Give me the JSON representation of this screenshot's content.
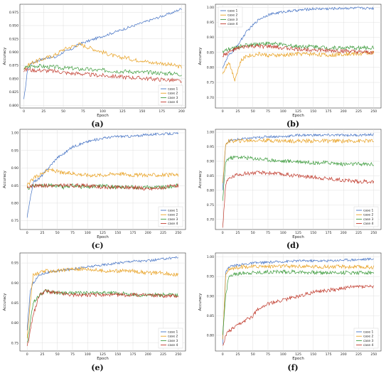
{
  "colors": {
    "case1": "#4472c4",
    "case2": "#e8a020",
    "case3": "#3a9a3a",
    "case4": "#c0392b"
  },
  "chart_data": [
    {
      "id": "a",
      "type": "line",
      "caption": "(a)",
      "xlabel": "Epoch",
      "ylabel": "Accuracy",
      "xlim": [
        -5,
        205
      ],
      "ylim": [
        0.795,
        0.99
      ],
      "xticks": [
        "0",
        "25",
        "50",
        "75",
        "100",
        "125",
        "150",
        "175",
        "200"
      ],
      "yticks": [
        "0.800",
        "0.825",
        "0.850",
        "0.875",
        "0.900",
        "0.925",
        "0.950",
        "0.975"
      ],
      "legend_position": "bottom-right",
      "x": [
        0,
        5,
        10,
        20,
        30,
        40,
        50,
        60,
        70,
        80,
        90,
        100,
        110,
        120,
        130,
        140,
        150,
        160,
        170,
        180,
        190,
        200
      ],
      "series": [
        {
          "name": "case 1",
          "values": [
            0.81,
            0.87,
            0.88,
            0.885,
            0.89,
            0.89,
            0.9,
            0.905,
            0.915,
            0.92,
            0.925,
            0.93,
            0.935,
            0.94,
            0.945,
            0.95,
            0.955,
            0.96,
            0.965,
            0.97,
            0.975,
            0.982
          ]
        },
        {
          "name": "case 2",
          "values": [
            0.87,
            0.875,
            0.88,
            0.885,
            0.89,
            0.895,
            0.905,
            0.91,
            0.915,
            0.91,
            0.905,
            0.9,
            0.895,
            0.89,
            0.89,
            0.885,
            0.885,
            0.88,
            0.88,
            0.878,
            0.875,
            0.872
          ]
        },
        {
          "name": "case 3",
          "values": [
            0.87,
            0.872,
            0.874,
            0.874,
            0.872,
            0.872,
            0.87,
            0.87,
            0.868,
            0.868,
            0.866,
            0.866,
            0.865,
            0.864,
            0.864,
            0.863,
            0.862,
            0.862,
            0.861,
            0.86,
            0.86,
            0.858
          ]
        },
        {
          "name": "case 4",
          "values": [
            0.865,
            0.868,
            0.866,
            0.866,
            0.865,
            0.864,
            0.862,
            0.86,
            0.86,
            0.858,
            0.857,
            0.856,
            0.855,
            0.854,
            0.853,
            0.852,
            0.851,
            0.85,
            0.849,
            0.848,
            0.847,
            0.845
          ]
        }
      ]
    },
    {
      "id": "b",
      "type": "line",
      "caption": "(b)",
      "xlabel": "Epoch",
      "ylabel": "Accuracy",
      "xlim": [
        -12,
        262
      ],
      "ylim": [
        0.665,
        1.01
      ],
      "xticks": [
        "0",
        "25",
        "50",
        "75",
        "100",
        "125",
        "150",
        "175",
        "200",
        "225",
        "250"
      ],
      "yticks": [
        "0.70",
        "0.75",
        "0.80",
        "0.85",
        "0.90",
        "0.95",
        "1.00"
      ],
      "legend_position": "upper-left",
      "x": [
        0,
        10,
        20,
        30,
        40,
        50,
        60,
        75,
        100,
        125,
        150,
        175,
        200,
        225,
        250
      ],
      "series": [
        {
          "name": "case 1",
          "values": [
            0.8,
            0.84,
            0.86,
            0.89,
            0.92,
            0.94,
            0.96,
            0.975,
            0.985,
            0.99,
            0.995,
            0.995,
            0.997,
            0.997,
            0.997
          ]
        },
        {
          "name": "case 2",
          "values": [
            0.78,
            0.82,
            0.76,
            0.82,
            0.84,
            0.84,
            0.845,
            0.84,
            0.84,
            0.845,
            0.845,
            0.84,
            0.845,
            0.845,
            0.85
          ]
        },
        {
          "name": "case 3",
          "values": [
            0.85,
            0.86,
            0.865,
            0.87,
            0.875,
            0.875,
            0.88,
            0.88,
            0.875,
            0.87,
            0.87,
            0.865,
            0.865,
            0.865,
            0.865
          ]
        },
        {
          "name": "case 4",
          "values": [
            0.84,
            0.85,
            0.86,
            0.865,
            0.87,
            0.87,
            0.87,
            0.87,
            0.865,
            0.86,
            0.86,
            0.855,
            0.855,
            0.85,
            0.85
          ]
        }
      ]
    },
    {
      "id": "c",
      "type": "line",
      "caption": "(c)",
      "xlabel": "Epoch",
      "ylabel": "Accuracy",
      "xlim": [
        -12,
        262
      ],
      "ylim": [
        0.725,
        1.01
      ],
      "xticks": [
        "0",
        "25",
        "50",
        "75",
        "100",
        "125",
        "150",
        "175",
        "200",
        "225",
        "250"
      ],
      "yticks": [
        "0.75",
        "0.80",
        "0.85",
        "0.90",
        "0.95",
        "1.00"
      ],
      "legend_position": "bottom-right",
      "x": [
        0,
        10,
        20,
        30,
        40,
        50,
        60,
        75,
        100,
        125,
        150,
        175,
        200,
        225,
        250
      ],
      "series": [
        {
          "name": "case 1",
          "values": [
            0.76,
            0.86,
            0.87,
            0.89,
            0.91,
            0.93,
            0.94,
            0.96,
            0.975,
            0.985,
            0.99,
            0.99,
            0.995,
            0.997,
            0.998
          ]
        },
        {
          "name": "case 2",
          "values": [
            0.85,
            0.87,
            0.88,
            0.89,
            0.895,
            0.89,
            0.885,
            0.885,
            0.88,
            0.88,
            0.885,
            0.88,
            0.88,
            0.88,
            0.88
          ]
        },
        {
          "name": "case 3",
          "values": [
            0.84,
            0.85,
            0.85,
            0.85,
            0.85,
            0.85,
            0.845,
            0.85,
            0.845,
            0.85,
            0.845,
            0.845,
            0.845,
            0.845,
            0.85
          ]
        },
        {
          "name": "case 4",
          "values": [
            0.845,
            0.85,
            0.85,
            0.85,
            0.85,
            0.85,
            0.85,
            0.85,
            0.85,
            0.845,
            0.845,
            0.845,
            0.84,
            0.845,
            0.85
          ]
        }
      ]
    },
    {
      "id": "d",
      "type": "line",
      "caption": "(d)",
      "xlabel": "Epoch",
      "ylabel": "Accuracy",
      "xlim": [
        -12,
        262
      ],
      "ylim": [
        0.665,
        1.01
      ],
      "xticks": [
        "0",
        "25",
        "50",
        "75",
        "100",
        "125",
        "150",
        "175",
        "200",
        "225",
        "250"
      ],
      "yticks": [
        "0.70",
        "0.75",
        "0.80",
        "0.85",
        "0.90",
        "0.95",
        "1.00"
      ],
      "legend_position": "bottom-right",
      "x": [
        0,
        5,
        10,
        25,
        50,
        75,
        100,
        125,
        150,
        175,
        200,
        225,
        250
      ],
      "series": [
        {
          "name": "case 1",
          "values": [
            0.8,
            0.96,
            0.97,
            0.975,
            0.98,
            0.985,
            0.985,
            0.99,
            0.99,
            0.99,
            0.99,
            0.99,
            0.992
          ]
        },
        {
          "name": "case 2",
          "values": [
            0.82,
            0.96,
            0.97,
            0.97,
            0.972,
            0.972,
            0.97,
            0.97,
            0.97,
            0.97,
            0.97,
            0.97,
            0.97
          ]
        },
        {
          "name": "case 3",
          "values": [
            0.76,
            0.9,
            0.91,
            0.915,
            0.91,
            0.905,
            0.9,
            0.9,
            0.895,
            0.895,
            0.89,
            0.89,
            0.89
          ]
        },
        {
          "name": "case 4",
          "values": [
            0.67,
            0.82,
            0.84,
            0.855,
            0.86,
            0.86,
            0.855,
            0.85,
            0.845,
            0.84,
            0.835,
            0.83,
            0.83
          ]
        }
      ]
    },
    {
      "id": "e",
      "type": "line",
      "caption": "(e)",
      "xlabel": "Epoch",
      "ylabel": "Accuracy",
      "xlim": [
        -12,
        262
      ],
      "ylim": [
        0.73,
        0.975
      ],
      "xticks": [
        "0",
        "25",
        "50",
        "75",
        "100",
        "125",
        "150",
        "175",
        "200",
        "225",
        "250"
      ],
      "yticks": [
        "0.75",
        "0.80",
        "0.85",
        "0.90",
        "0.95"
      ],
      "legend_position": "bottom-right",
      "x": [
        0,
        5,
        10,
        20,
        30,
        50,
        75,
        100,
        125,
        150,
        175,
        200,
        225,
        250
      ],
      "series": [
        {
          "name": "case 1",
          "values": [
            0.78,
            0.88,
            0.9,
            0.92,
            0.925,
            0.93,
            0.935,
            0.94,
            0.945,
            0.95,
            0.955,
            0.955,
            0.96,
            0.965
          ]
        },
        {
          "name": "case 2",
          "values": [
            0.76,
            0.85,
            0.92,
            0.925,
            0.93,
            0.93,
            0.935,
            0.935,
            0.93,
            0.93,
            0.93,
            0.925,
            0.925,
            0.92
          ]
        },
        {
          "name": "case 3",
          "values": [
            0.75,
            0.8,
            0.85,
            0.87,
            0.88,
            0.875,
            0.875,
            0.875,
            0.875,
            0.875,
            0.87,
            0.87,
            0.87,
            0.87
          ]
        },
        {
          "name": "case 4",
          "values": [
            0.74,
            0.78,
            0.82,
            0.87,
            0.88,
            0.875,
            0.87,
            0.87,
            0.87,
            0.87,
            0.87,
            0.87,
            0.868,
            0.868
          ]
        }
      ]
    },
    {
      "id": "f",
      "type": "line",
      "caption": "(f)",
      "xlabel": "Epoch",
      "ylabel": "Accuracy",
      "xlim": [
        -12,
        262
      ],
      "ylim": [
        0.76,
        1.01
      ],
      "xticks": [
        "0",
        "25",
        "50",
        "75",
        "100",
        "125",
        "150",
        "175",
        "200",
        "225",
        "250"
      ],
      "yticks": [
        "0.80",
        "0.85",
        "0.90",
        "0.95",
        "1.00"
      ],
      "legend_position": "bottom-right",
      "x": [
        0,
        5,
        10,
        20,
        30,
        40,
        50,
        60,
        75,
        100,
        125,
        150,
        175,
        200,
        225,
        250
      ],
      "series": [
        {
          "name": "case 1",
          "values": [
            0.78,
            0.96,
            0.975,
            0.978,
            0.98,
            0.982,
            0.984,
            0.985,
            0.986,
            0.988,
            0.99,
            0.99,
            0.99,
            0.992,
            0.993,
            0.995
          ]
        },
        {
          "name": "case 2",
          "values": [
            0.79,
            0.95,
            0.97,
            0.972,
            0.975,
            0.975,
            0.975,
            0.976,
            0.976,
            0.976,
            0.976,
            0.975,
            0.975,
            0.975,
            0.974,
            0.974
          ]
        },
        {
          "name": "case 3",
          "values": [
            0.8,
            0.9,
            0.95,
            0.955,
            0.958,
            0.96,
            0.96,
            0.96,
            0.962,
            0.962,
            0.962,
            0.96,
            0.96,
            0.96,
            0.96,
            0.96
          ]
        },
        {
          "name": "case 4",
          "values": [
            0.77,
            0.8,
            0.81,
            0.82,
            0.83,
            0.84,
            0.85,
            0.87,
            0.88,
            0.89,
            0.9,
            0.91,
            0.915,
            0.92,
            0.925,
            0.925
          ]
        }
      ]
    }
  ]
}
